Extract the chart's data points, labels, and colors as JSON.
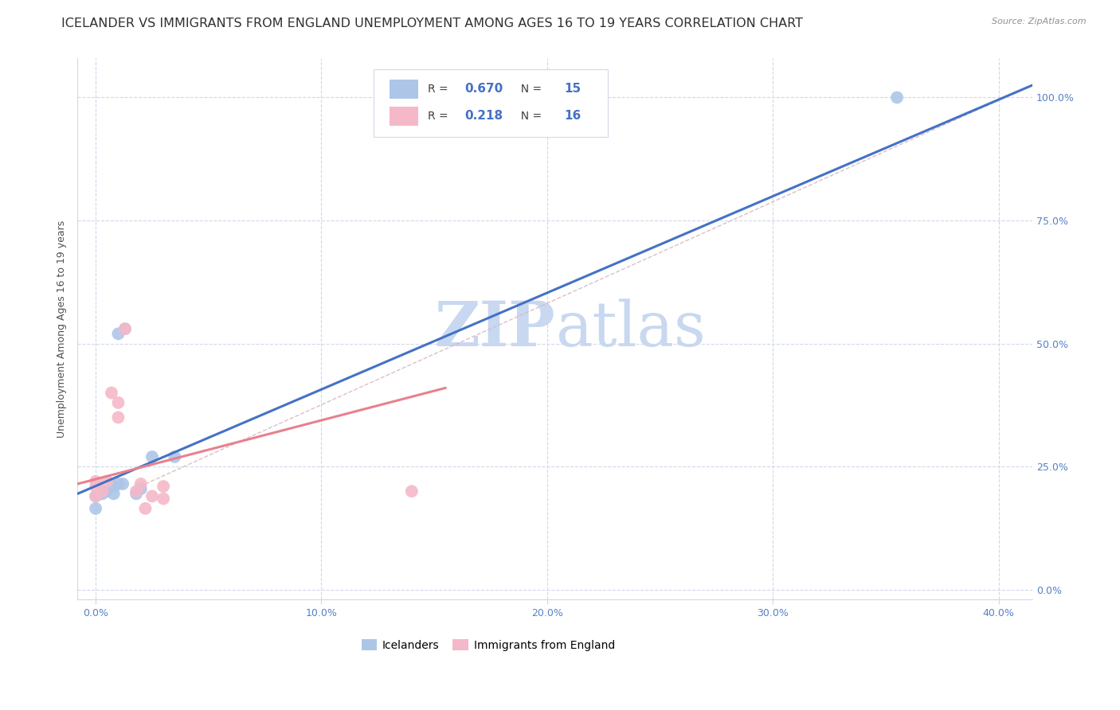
{
  "title": "ICELANDER VS IMMIGRANTS FROM ENGLAND UNEMPLOYMENT AMONG AGES 16 TO 19 YEARS CORRELATION CHART",
  "source": "Source: ZipAtlas.com",
  "xlabel_ticks": [
    "0.0%",
    "10.0%",
    "20.0%",
    "30.0%",
    "40.0%"
  ],
  "xlabel_tick_vals": [
    0.0,
    0.1,
    0.2,
    0.3,
    0.4
  ],
  "ylabel": "Unemployment Among Ages 16 to 19 years",
  "ylabel_ticks": [
    "100.0%",
    "75.0%",
    "50.0%",
    "25.0%",
    "0.0%"
  ],
  "ylabel_tick_vals": [
    1.0,
    0.75,
    0.5,
    0.25,
    0.0
  ],
  "xlim": [
    -0.008,
    0.415
  ],
  "ylim": [
    -0.02,
    1.08
  ],
  "legend_blue_r": "0.670",
  "legend_blue_n": "15",
  "legend_pink_r": "0.218",
  "legend_pink_n": "16",
  "blue_color": "#adc6e8",
  "pink_color": "#f5b8c8",
  "line_blue": "#4472c4",
  "line_pink": "#e8808e",
  "diag_color": "#d8b8c0",
  "watermark_zip": "ZIP",
  "watermark_atlas": "atlas",
  "icelanders_x": [
    0.0,
    0.0,
    0.003,
    0.005,
    0.008,
    0.008,
    0.01,
    0.01,
    0.012,
    0.013,
    0.018,
    0.02,
    0.025,
    0.035,
    0.355
  ],
  "icelanders_y": [
    0.165,
    0.19,
    0.195,
    0.2,
    0.195,
    0.21,
    0.215,
    0.52,
    0.215,
    0.53,
    0.195,
    0.205,
    0.27,
    0.27,
    1.0
  ],
  "england_x": [
    0.0,
    0.0,
    0.0,
    0.003,
    0.005,
    0.007,
    0.01,
    0.01,
    0.013,
    0.018,
    0.02,
    0.022,
    0.025,
    0.03,
    0.03,
    0.14
  ],
  "england_y": [
    0.19,
    0.21,
    0.22,
    0.2,
    0.22,
    0.4,
    0.35,
    0.38,
    0.53,
    0.2,
    0.215,
    0.165,
    0.19,
    0.185,
    0.21,
    0.2
  ],
  "blue_line_x0": -0.008,
  "blue_line_x1": 0.415,
  "blue_line_y0": 0.195,
  "blue_line_y1": 1.025,
  "pink_line_x0": -0.008,
  "pink_line_x1": 0.155,
  "pink_line_y0": 0.215,
  "pink_line_y1": 0.41,
  "diag_line_x0": 0.022,
  "diag_line_x1": 0.415,
  "diag_line_y0": 0.215,
  "diag_line_y1": 1.025,
  "grid_color": "#d0d8e8",
  "title_fontsize": 11.5,
  "axis_label_fontsize": 9,
  "tick_fontsize": 9,
  "watermark_color": "#c8d8f0",
  "watermark_fontsize_zip": 56,
  "watermark_fontsize_atlas": 56,
  "right_tick_color": "#5580c8",
  "bottom_tick_color": "#5580c8"
}
